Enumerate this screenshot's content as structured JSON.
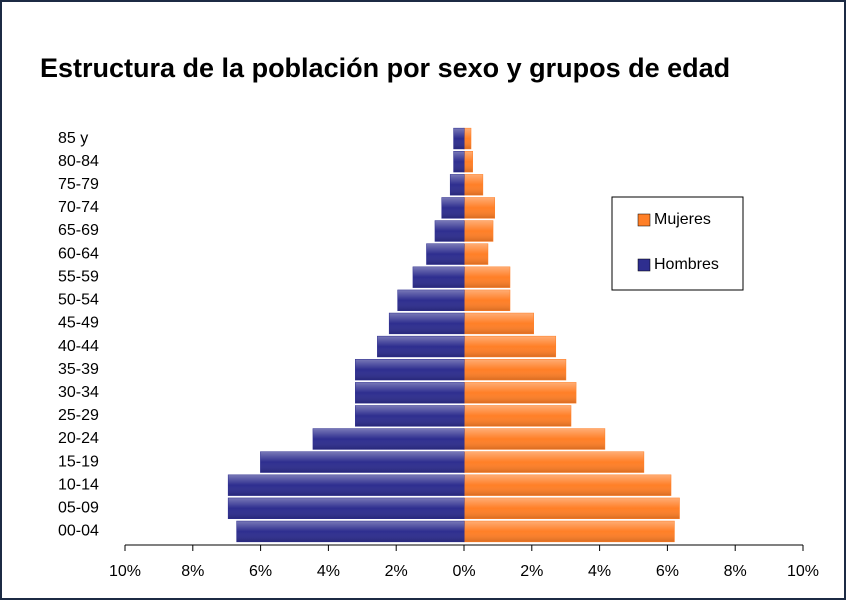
{
  "chart_data": {
    "type": "pyramid",
    "title": "Estructura de la población por sexo y grupos de edad",
    "categories": [
      "00-04",
      "05-09",
      "10-14",
      "15-19",
      "20-24",
      "25-29",
      "30-34",
      "35-39",
      "40-44",
      "45-49",
      "50-54",
      "55-59",
      "60-64",
      "65-69",
      "70-74",
      "75-79",
      "80-84",
      "85 y"
    ],
    "series": [
      {
        "name": "Mujeres",
        "color": "#ff7f27",
        "values": [
          6.2,
          6.35,
          6.1,
          5.3,
          4.15,
          3.15,
          3.3,
          3.0,
          2.7,
          2.05,
          1.35,
          1.35,
          0.7,
          0.85,
          0.9,
          0.55,
          0.25,
          0.2
        ]
      },
      {
        "name": "Hombres",
        "color": "#2e2e8f",
        "values": [
          -6.7,
          -6.95,
          -6.95,
          -6.0,
          -4.45,
          -3.2,
          -3.2,
          -3.2,
          -2.55,
          -2.2,
          -1.95,
          -1.5,
          -1.1,
          -0.85,
          -0.65,
          -0.4,
          -0.3,
          -0.3
        ]
      }
    ],
    "xlim": [
      -10,
      10
    ],
    "xticks": [
      {
        "value": -10,
        "label": "10%"
      },
      {
        "value": -8,
        "label": "8%"
      },
      {
        "value": -6,
        "label": "6%"
      },
      {
        "value": -4,
        "label": "4%"
      },
      {
        "value": -2,
        "label": "2%"
      },
      {
        "value": 0,
        "label": "0%"
      },
      {
        "value": 2,
        "label": "2%"
      },
      {
        "value": 4,
        "label": "4%"
      },
      {
        "value": 6,
        "label": "6%"
      },
      {
        "value": 8,
        "label": "8%"
      },
      {
        "value": 10,
        "label": "10%"
      }
    ],
    "legend": "right"
  }
}
